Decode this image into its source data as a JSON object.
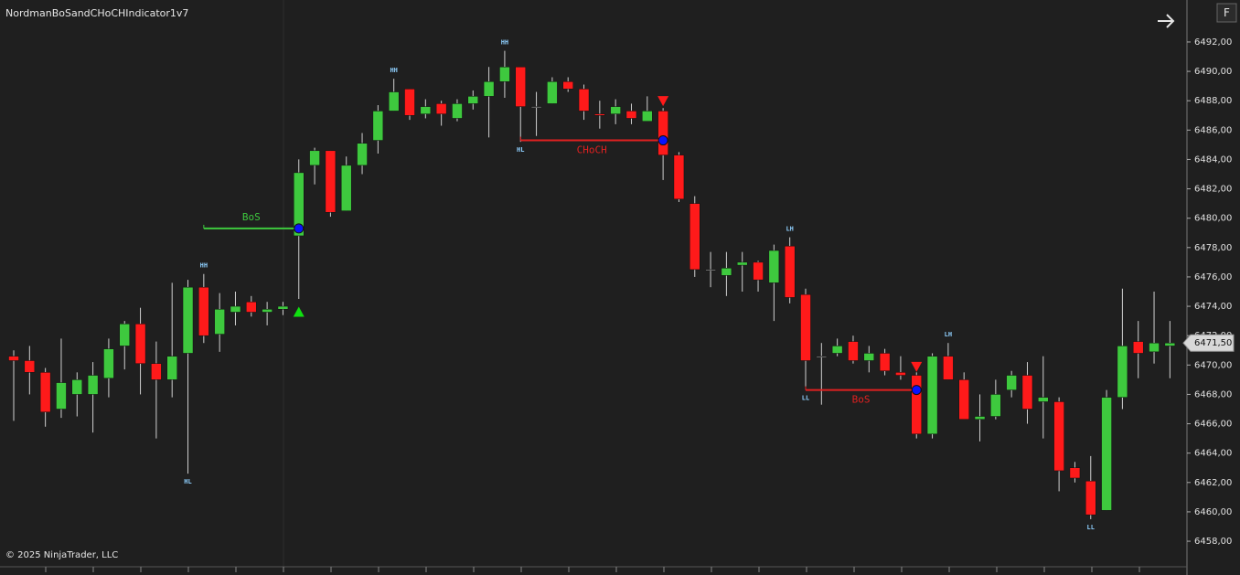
{
  "chart_data": {
    "type": "candlestick",
    "title": "NordmanBoSandCHoCHIndicator1v7",
    "footer": "© 2025 NinjaTrader, LLC",
    "button": "F",
    "open": [
      6470.6,
      6470.3,
      6469.5,
      6467.0,
      6468.0,
      6468.0,
      6469.1,
      6471.3,
      6472.8,
      6470.1,
      6469.0,
      6470.8,
      6475.3,
      6472.1,
      6473.6,
      6474.3,
      6473.6,
      6473.8,
      6478.8,
      6483.6,
      6484.6,
      6480.5,
      6483.6,
      6485.3,
      6487.3,
      6488.8,
      6487.1,
      6487.8,
      6486.8,
      6487.8,
      6488.3,
      6489.3,
      6490.3,
      6487.6,
      6487.8,
      6489.3,
      6488.8,
      6487.1,
      6487.1,
      6487.3,
      6486.6,
      6487.3,
      6484.3,
      6481.0,
      6476.5,
      6476.1,
      6476.8,
      6477.0,
      6475.6,
      6478.1,
      6474.8,
      6470.6,
      6470.8,
      6471.6,
      6470.3,
      6470.8,
      6469.5,
      6469.3,
      6465.3,
      6470.6,
      6469.0,
      6466.3,
      6466.5,
      6468.3,
      6469.3,
      6467.5,
      6467.5,
      6463.0,
      6462.1,
      6460.1,
      6467.8,
      6471.6,
      6470.9,
      6471.3
    ],
    "high": [
      6471.0,
      6471.3,
      6469.8,
      6471.8,
      6469.5,
      6470.2,
      6471.8,
      6473.0,
      6473.9,
      6471.6,
      6475.6,
      6475.8,
      6476.2,
      6474.9,
      6475.0,
      6474.7,
      6474.3,
      6474.3,
      6484.0,
      6484.8,
      6484.6,
      6484.2,
      6485.8,
      6487.7,
      6489.5,
      6488.8,
      6488.1,
      6488.0,
      6488.1,
      6488.7,
      6490.3,
      6491.4,
      6490.3,
      6488.6,
      6489.6,
      6489.6,
      6489.1,
      6488.0,
      6488.1,
      6487.8,
      6488.3,
      6487.5,
      6484.5,
      6481.5,
      6477.7,
      6477.7,
      6477.7,
      6477.1,
      6478.2,
      6478.7,
      6475.2,
      6471.5,
      6471.8,
      6472.0,
      6471.3,
      6471.1,
      6470.6,
      6469.5,
      6470.8,
      6471.5,
      6469.5,
      6468.0,
      6469.0,
      6469.6,
      6470.2,
      6470.6,
      6467.8,
      6463.4,
      6463.8,
      6468.3,
      6475.2,
      6473.0,
      6475.0,
      6473.0
    ],
    "low": [
      6466.2,
      6468.0,
      6465.8,
      6466.4,
      6466.5,
      6465.4,
      6467.8,
      6469.7,
      6468.0,
      6465.0,
      6467.8,
      6462.6,
      6471.5,
      6470.9,
      6472.7,
      6473.3,
      6472.7,
      6473.4,
      6474.5,
      6482.3,
      6480.1,
      6480.5,
      6483.0,
      6484.4,
      6487.3,
      6486.7,
      6486.8,
      6486.3,
      6486.6,
      6487.4,
      6485.5,
      6488.2,
      6485.2,
      6485.6,
      6487.8,
      6488.6,
      6486.7,
      6486.1,
      6486.4,
      6486.4,
      6486.6,
      6482.6,
      6481.1,
      6476.0,
      6475.3,
      6474.7,
      6475.0,
      6475.0,
      6473.0,
      6474.2,
      6468.3,
      6467.3,
      6470.6,
      6470.1,
      6469.5,
      6469.3,
      6469.0,
      6465.0,
      6465.0,
      6469.0,
      6466.3,
      6464.8,
      6466.3,
      6467.8,
      6466.0,
      6465.0,
      6461.4,
      6462.0,
      6459.5,
      6460.1,
      6467.0,
      6469.1,
      6470.1,
      6469.1
    ],
    "close": [
      6470.3,
      6469.5,
      6466.8,
      6468.8,
      6469.0,
      6469.3,
      6471.1,
      6472.8,
      6470.1,
      6469.0,
      6470.6,
      6475.3,
      6472.0,
      6473.8,
      6474.0,
      6473.6,
      6473.8,
      6474.0,
      6483.1,
      6484.6,
      6480.4,
      6483.6,
      6485.1,
      6487.3,
      6488.6,
      6487.0,
      6487.6,
      6487.1,
      6487.8,
      6488.3,
      6489.3,
      6490.3,
      6487.6,
      6487.6,
      6489.3,
      6488.8,
      6487.3,
      6487.0,
      6487.6,
      6486.8,
      6487.3,
      6484.3,
      6481.3,
      6476.5,
      6476.5,
      6476.6,
      6477.0,
      6475.8,
      6477.8,
      6474.6,
      6470.3,
      6470.6,
      6471.3,
      6470.3,
      6470.8,
      6469.6,
      6469.3,
      6465.3,
      6470.6,
      6469.0,
      6466.3,
      6466.5,
      6468.0,
      6469.3,
      6467.0,
      6467.8,
      6462.8,
      6462.3,
      6459.8,
      6467.8,
      6471.3,
      6470.8,
      6471.5,
      6471.5
    ],
    "up_color": "#3ec93e",
    "down_color": "#ff1a1a",
    "wick_color": "#d0d0d0",
    "ylim": [
      6456.26,
      6494.86
    ],
    "yticks": [
      {
        "value": 6458,
        "label": "6458,00"
      },
      {
        "value": 6460,
        "label": "6460,00"
      },
      {
        "value": 6462,
        "label": "6462,00"
      },
      {
        "value": 6464,
        "label": "6464,00"
      },
      {
        "value": 6466,
        "label": "6466,00"
      },
      {
        "value": 6468,
        "label": "6468,00"
      },
      {
        "value": 6470,
        "label": "6470,00"
      },
      {
        "value": 6472,
        "label": "6472,00"
      },
      {
        "value": 6474,
        "label": "6474,00"
      },
      {
        "value": 6476,
        "label": "6476,00"
      },
      {
        "value": 6478,
        "label": "6478,00"
      },
      {
        "value": 6480,
        "label": "6480,00"
      },
      {
        "value": 6482,
        "label": "6482,00"
      },
      {
        "value": 6484,
        "label": "6484,00"
      },
      {
        "value": 6486,
        "label": "6486,00"
      },
      {
        "value": 6488,
        "label": "6488,00"
      },
      {
        "value": 6490,
        "label": "6490,00"
      },
      {
        "value": 6492,
        "label": "6492,00"
      }
    ],
    "last_price": {
      "value": 6471.5,
      "label": "6471,50"
    },
    "swing_labels": [
      {
        "label": "HL",
        "index": 11,
        "at": "low"
      },
      {
        "label": "HH",
        "index": 12,
        "at": "high"
      },
      {
        "label": "HH",
        "index": 24,
        "at": "high"
      },
      {
        "label": "HH",
        "index": 31,
        "at": "high"
      },
      {
        "label": "HL",
        "index": 32,
        "at": "low"
      },
      {
        "label": "LH",
        "index": 49,
        "at": "high"
      },
      {
        "label": "LL",
        "index": 50,
        "at": "low"
      },
      {
        "label": "LH",
        "index": 59,
        "at": "high"
      },
      {
        "label": "LL",
        "index": 68,
        "at": "low"
      }
    ],
    "structure_lines": [
      {
        "label": "BoS",
        "start": 12,
        "end": 18,
        "value": 6479.3,
        "color": "#3ec93e"
      },
      {
        "label": "CHoCH",
        "start": 32,
        "end": 41,
        "value": 6485.3,
        "color": "#e02020"
      },
      {
        "label": "BoS",
        "start": 50,
        "end": 57,
        "value": 6468.3,
        "color": "#e02020"
      }
    ],
    "signals": [
      {
        "index": 18,
        "value": 6473.6,
        "direction": "up",
        "color": "#10e010"
      },
      {
        "index": 41,
        "value": 6488.0,
        "direction": "down",
        "color": "#ff1a1a"
      },
      {
        "index": 57,
        "value": 6469.9,
        "direction": "down",
        "color": "#ff1a1a"
      }
    ]
  }
}
